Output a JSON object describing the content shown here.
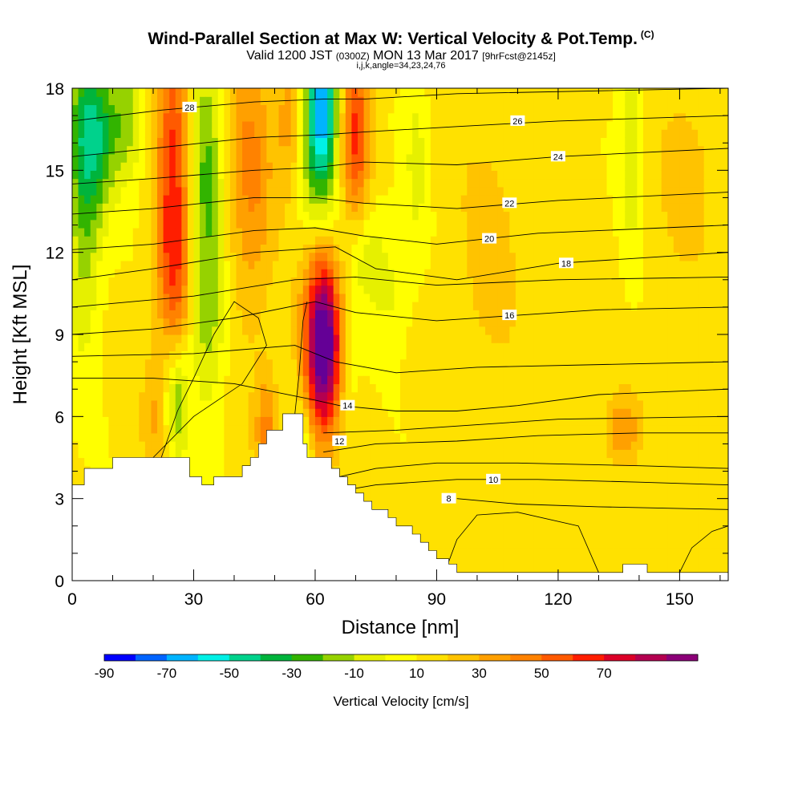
{
  "title": "Wind-Parallel Section at Max W: Vertical Velocity & Pot.Temp.",
  "title_mark": "(C)",
  "subtitle_a": "Valid 1200 JST",
  "subtitle_b": "(0300Z)",
  "subtitle_c": "MON 13 Mar 2017",
  "subtitle_d": "[9hrFcst@2145z]",
  "subtitle2": "i,j,k,angle=34,23,24,76",
  "chart_data": {
    "type": "heatmap",
    "xlabel": "Distance [nm]",
    "ylabel": "Height [Kft MSL]",
    "xlim": [
      0,
      162
    ],
    "ylim": [
      0,
      18
    ],
    "x_ticks": [
      "0",
      "30",
      "60",
      "90",
      "120",
      "150"
    ],
    "y_ticks": [
      "0",
      "3",
      "6",
      "9",
      "12",
      "15",
      "18"
    ],
    "colorbar": {
      "title": "Vertical Velocity [cm/s]",
      "labels": [
        "-90",
        "-70",
        "-50",
        "-30",
        "-10",
        "10",
        "30",
        "50",
        "70"
      ],
      "colors": [
        "#0000ff",
        "#0064ff",
        "#00b4ff",
        "#00f0e6",
        "#00d28c",
        "#00b43c",
        "#32b400",
        "#96d200",
        "#e6f000",
        "#ffff00",
        "#ffe100",
        "#ffc300",
        "#ffa000",
        "#ff8200",
        "#ff5a00",
        "#ff1e00",
        "#dc0028",
        "#b40050",
        "#8c0078",
        "#640096"
      ]
    },
    "w_features": [
      {
        "x": 3,
        "y": 14,
        "sx": 3,
        "sy": 4,
        "w": -30
      },
      {
        "x": 6,
        "y": 16.5,
        "sx": 4,
        "sy": 2,
        "w": -40
      },
      {
        "x": 14,
        "y": 17,
        "sx": 3,
        "sy": 1.5,
        "w": -25
      },
      {
        "x": 25,
        "y": 15.5,
        "sx": 3,
        "sy": 4,
        "w": 50
      },
      {
        "x": 25,
        "y": 11,
        "sx": 3,
        "sy": 2,
        "w": 25
      },
      {
        "x": 33,
        "y": 14.5,
        "sx": 3,
        "sy": 4,
        "w": -35
      },
      {
        "x": 34,
        "y": 9,
        "sx": 3,
        "sy": 2,
        "w": -15
      },
      {
        "x": 44,
        "y": 15,
        "sx": 4,
        "sy": 4,
        "w": 30
      },
      {
        "x": 26,
        "y": 6.5,
        "sx": 2,
        "sy": 1.5,
        "w": -30
      },
      {
        "x": 20,
        "y": 6,
        "sx": 2,
        "sy": 1.5,
        "w": 18
      },
      {
        "x": 48,
        "y": 5.5,
        "sx": 2,
        "sy": 1.5,
        "w": 30
      },
      {
        "x": 54,
        "y": 17,
        "sx": 2.5,
        "sy": 2,
        "w": 28
      },
      {
        "x": 58,
        "y": 16,
        "sx": 3,
        "sy": 5,
        "w": -20
      },
      {
        "x": 62,
        "y": 17.5,
        "sx": 2.5,
        "sy": 2,
        "w": -55
      },
      {
        "x": 62,
        "y": 15,
        "sx": 3,
        "sy": 3,
        "w": -30
      },
      {
        "x": 70,
        "y": 16.5,
        "sx": 2.5,
        "sy": 2.5,
        "w": 50
      },
      {
        "x": 72,
        "y": 12,
        "sx": 4,
        "sy": 1.5,
        "w": -20
      },
      {
        "x": 79,
        "y": 10.5,
        "sx": 3,
        "sy": 1.5,
        "w": -12
      },
      {
        "x": 62,
        "y": 8.5,
        "sx": 3,
        "sy": 2.2,
        "w": 85
      },
      {
        "x": 61,
        "y": 10.5,
        "sx": 4,
        "sy": 3,
        "w": 35
      },
      {
        "x": 57,
        "y": 5,
        "sx": 1.5,
        "sy": 1,
        "w": -20
      },
      {
        "x": 68,
        "y": 7.5,
        "sx": 2,
        "sy": 2,
        "w": -10
      },
      {
        "x": 85,
        "y": 15.5,
        "sx": 2,
        "sy": 2.5,
        "w": -15
      },
      {
        "x": 103,
        "y": 12,
        "sx": 6,
        "sy": 4,
        "w": 12
      },
      {
        "x": 138,
        "y": 16,
        "sx": 2,
        "sy": 3,
        "w": -20
      },
      {
        "x": 136,
        "y": 5.5,
        "sx": 3,
        "sy": 1,
        "w": 28
      },
      {
        "x": 152,
        "y": 15,
        "sx": 6,
        "sy": 3,
        "w": 12
      }
    ],
    "theta_contours": [
      {
        "label": "8",
        "x": [
          95,
          110,
          130,
          162
        ],
        "y": [
          3.0,
          2.8,
          2.7,
          2.6
        ],
        "lx": 93,
        "ly": 3.0
      },
      {
        "label": "10",
        "x": [
          67,
          75,
          95,
          115,
          140,
          162
        ],
        "y": [
          3.3,
          3.5,
          3.7,
          3.7,
          3.6,
          3.5
        ],
        "lx": 104,
        "ly": 3.7
      },
      {
        "label": "",
        "x": [
          66,
          75,
          90,
          110,
          140,
          162
        ],
        "y": [
          3.8,
          4.1,
          4.3,
          4.3,
          4.2,
          4.1
        ],
        "lx": 0,
        "ly": 0
      },
      {
        "label": "12",
        "x": [
          62,
          75,
          95,
          115,
          140,
          162
        ],
        "y": [
          4.7,
          5.0,
          5.1,
          5.3,
          5.4,
          5.4
        ],
        "lx": 66,
        "ly": 5.1
      },
      {
        "label": "",
        "x": [
          62,
          80,
          100,
          120,
          162
        ],
        "y": [
          5.4,
          5.5,
          5.7,
          5.9,
          6.0
        ],
        "lx": 0,
        "ly": 0
      },
      {
        "label": "14",
        "x": [
          0,
          20,
          40,
          60,
          66,
          80,
          95,
          110,
          130,
          162
        ],
        "y": [
          7.4,
          7.4,
          7.2,
          6.6,
          6.4,
          6.2,
          6.2,
          6.4,
          6.8,
          7.0
        ],
        "lx": 68,
        "ly": 6.4
      },
      {
        "label": "",
        "x": [
          0,
          30,
          55,
          65,
          80,
          100,
          162
        ],
        "y": [
          8.2,
          8.3,
          8.6,
          8.0,
          7.6,
          7.8,
          8.0
        ],
        "lx": 0,
        "ly": 0
      },
      {
        "label": "16",
        "x": [
          0,
          20,
          40,
          60,
          70,
          90,
          110,
          130,
          162
        ],
        "y": [
          9.0,
          9.2,
          9.6,
          10.2,
          9.8,
          9.5,
          9.7,
          9.9,
          10.0
        ],
        "lx": 108,
        "ly": 9.7
      },
      {
        "label": "",
        "x": [
          0,
          30,
          55,
          70,
          90,
          120,
          162
        ],
        "y": [
          10.0,
          10.4,
          11.0,
          11.1,
          10.8,
          11.0,
          11.1
        ],
        "lx": 0,
        "ly": 0
      },
      {
        "label": "18",
        "x": [
          0,
          20,
          45,
          65,
          75,
          95,
          120,
          162
        ],
        "y": [
          11.0,
          11.4,
          12.0,
          12.2,
          11.4,
          11.0,
          11.6,
          12.0
        ],
        "lx": 122,
        "ly": 11.6
      },
      {
        "label": "20",
        "x": [
          0,
          20,
          45,
          60,
          72,
          90,
          115,
          162
        ],
        "y": [
          12.1,
          12.3,
          12.8,
          12.9,
          12.6,
          12.3,
          12.7,
          13.0
        ],
        "lx": 103,
        "ly": 12.5
      },
      {
        "label": "22",
        "x": [
          0,
          20,
          45,
          60,
          72,
          95,
          120,
          162
        ],
        "y": [
          13.4,
          13.6,
          14.0,
          14.0,
          13.8,
          13.6,
          13.9,
          14.2
        ],
        "lx": 108,
        "ly": 13.8
      },
      {
        "label": "24",
        "x": [
          0,
          20,
          45,
          60,
          72,
          95,
          120,
          162
        ],
        "y": [
          14.5,
          14.7,
          15.0,
          15.1,
          15.3,
          15.2,
          15.5,
          15.8
        ],
        "lx": 120,
        "ly": 15.5
      },
      {
        "label": "26",
        "x": [
          0,
          20,
          45,
          62,
          72,
          95,
          120,
          162
        ],
        "y": [
          15.5,
          15.8,
          16.2,
          16.3,
          16.4,
          16.6,
          16.8,
          17.0
        ],
        "lx": 110,
        "ly": 16.8
      },
      {
        "label": "28",
        "x": [
          0,
          22,
          45,
          62,
          72,
          95,
          162
        ],
        "y": [
          16.8,
          17.2,
          17.5,
          17.6,
          17.6,
          17.8,
          18.0
        ],
        "lx": 29,
        "ly": 17.3
      }
    ],
    "w_contours": [
      {
        "x": [
          20,
          30,
          42,
          48,
          46,
          40,
          35,
          30,
          26,
          22
        ],
        "y": [
          4.5,
          6.0,
          7.2,
          8.6,
          9.6,
          10.2,
          9.0,
          7.4,
          6.2,
          4.5
        ]
      },
      {
        "x": [
          55,
          56,
          57,
          58
        ],
        "y": [
          6.1,
          7.5,
          9.5,
          10.2
        ]
      },
      {
        "x": [
          92,
          95,
          100,
          110,
          125,
          130
        ],
        "y": [
          0.3,
          1.5,
          2.4,
          2.5,
          2.0,
          0.3
        ]
      },
      {
        "x": [
          150,
          153,
          158,
          162
        ],
        "y": [
          0.3,
          1.2,
          1.8,
          2.0
        ]
      }
    ],
    "terrain": [
      {
        "x": 0,
        "h": 3.5
      },
      {
        "x": 3,
        "h": 4.1
      },
      {
        "x": 10,
        "h": 4.5
      },
      {
        "x": 29,
        "h": 3.8
      },
      {
        "x": 32,
        "h": 3.5
      },
      {
        "x": 35,
        "h": 3.8
      },
      {
        "x": 42,
        "h": 4.2
      },
      {
        "x": 44,
        "h": 4.5
      },
      {
        "x": 46,
        "h": 5.0
      },
      {
        "x": 48,
        "h": 5.5
      },
      {
        "x": 50,
        "h": 5.5
      },
      {
        "x": 52,
        "h": 6.1
      },
      {
        "x": 57,
        "h": 5.0
      },
      {
        "x": 58,
        "h": 4.5
      },
      {
        "x": 64,
        "h": 4.1
      },
      {
        "x": 66,
        "h": 3.8
      },
      {
        "x": 68,
        "h": 3.5
      },
      {
        "x": 70,
        "h": 3.2
      },
      {
        "x": 72,
        "h": 2.9
      },
      {
        "x": 74,
        "h": 2.6
      },
      {
        "x": 78,
        "h": 2.3
      },
      {
        "x": 80,
        "h": 2.0
      },
      {
        "x": 84,
        "h": 1.7
      },
      {
        "x": 86,
        "h": 1.4
      },
      {
        "x": 88,
        "h": 1.1
      },
      {
        "x": 90,
        "h": 0.8
      },
      {
        "x": 93,
        "h": 0.6
      },
      {
        "x": 95,
        "h": 0.3
      },
      {
        "x": 136,
        "h": 0.6
      },
      {
        "x": 142,
        "h": 0.3
      },
      {
        "x": 162,
        "h": 0.3
      }
    ]
  }
}
